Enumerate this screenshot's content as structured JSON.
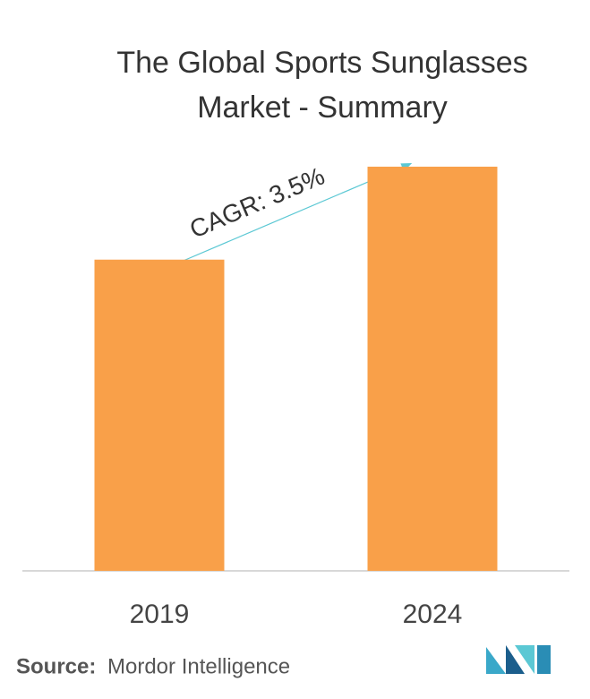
{
  "chart_data": {
    "type": "bar",
    "title": "The Global Sports Sunglasses Market - Summary",
    "categories": [
      "2019",
      "2024"
    ],
    "values": [
      77,
      100
    ],
    "color": "#f9a049",
    "ylim": [
      0,
      100
    ],
    "annotation": "CAGR: 3.5%",
    "source_label": "Source:",
    "source": "Mordor Intelligence"
  }
}
